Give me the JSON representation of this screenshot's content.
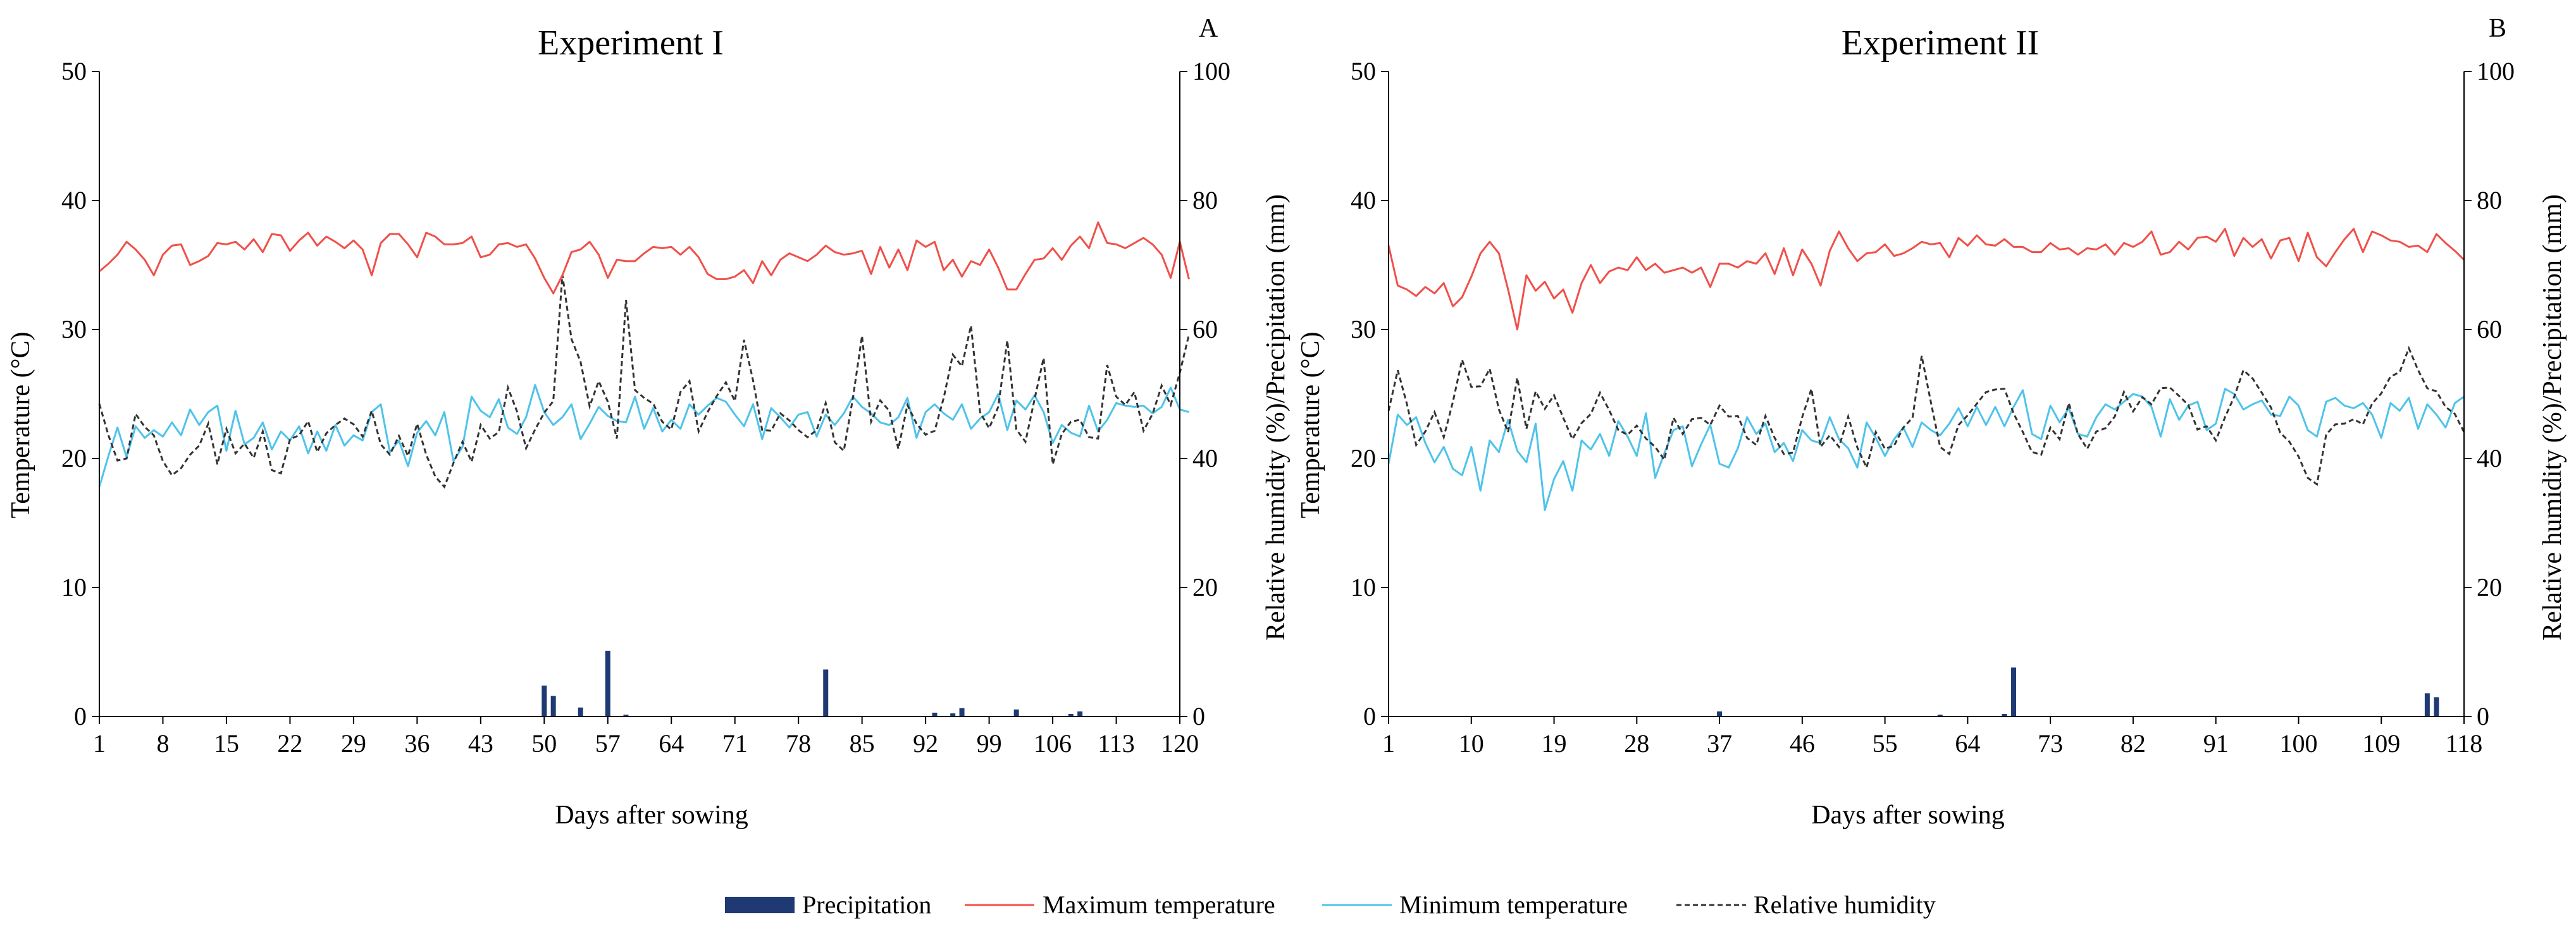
{
  "colors": {
    "precipitation": "#1f3a73",
    "max_temperature": "#f0504a",
    "min_temperature": "#4fc3ea",
    "relative_humidity": "#333333",
    "axis": "#000000"
  },
  "legend": {
    "precipitation": "Precipitation",
    "max_temperature": "Maximum temperature",
    "min_temperature": "Minimum temperature",
    "relative_humidity": "Relative humidity"
  },
  "chart_data": [
    {
      "type": "line",
      "panel_letter": "A",
      "title": "Experiment I",
      "xlabel": "Days after sowing",
      "ylabel": "Temperature (°C)",
      "ylabel_right": "Relative humidity (%)/Precipitation (mm)",
      "xlim": [
        1,
        120
      ],
      "xticks": [
        1,
        8,
        15,
        22,
        29,
        36,
        43,
        50,
        57,
        64,
        71,
        78,
        85,
        92,
        99,
        106,
        113,
        120
      ],
      "ylim": [
        0,
        50
      ],
      "yticks": [
        0,
        10,
        20,
        30,
        40,
        50
      ],
      "ylim_right": [
        0,
        100
      ],
      "yticks_right": [
        0,
        20,
        40,
        60,
        80,
        100
      ],
      "max_temperature": [
        34.5,
        35.1,
        35.8,
        36.8,
        36.2,
        35.4,
        34.2,
        35.8,
        36.5,
        36.6,
        35.0,
        35.3,
        35.7,
        36.7,
        36.6,
        36.8,
        36.2,
        37.0,
        36.0,
        37.4,
        37.3,
        36.1,
        36.9,
        37.5,
        36.5,
        37.2,
        36.8,
        36.3,
        36.9,
        36.2,
        34.2,
        36.7,
        37.4,
        37.4,
        36.6,
        35.6,
        37.5,
        37.2,
        36.6,
        36.6,
        36.7,
        37.2,
        35.6,
        35.8,
        36.6,
        36.7,
        36.4,
        36.6,
        35.5,
        34.0,
        32.8,
        34.2,
        36.0,
        36.2,
        36.8,
        35.8,
        34.0,
        35.4,
        35.3,
        35.3,
        35.9,
        36.4,
        36.3,
        36.4,
        35.8,
        36.4,
        35.6,
        34.3,
        33.9,
        33.9,
        34.1,
        34.6,
        33.6,
        35.3,
        34.2,
        35.4,
        35.9,
        35.6,
        35.3,
        35.8,
        36.5,
        36.0,
        35.8,
        35.9,
        36.1,
        34.3,
        36.4,
        34.8,
        36.2,
        34.6,
        36.9,
        36.4,
        36.8,
        34.6,
        35.4,
        34.1,
        35.3,
        35.0,
        36.2,
        34.8,
        33.1,
        33.1,
        34.3,
        35.4,
        35.5,
        36.3,
        35.4,
        36.5,
        37.2,
        36.3,
        38.3,
        36.7,
        36.6,
        36.3,
        36.7,
        37.1,
        36.6,
        35.8,
        34.0,
        36.8,
        33.9
      ],
      "min_temperature": [
        17.8,
        20.2,
        22.4,
        20.1,
        22.5,
        21.6,
        22.2,
        21.7,
        22.8,
        21.8,
        23.8,
        22.6,
        23.6,
        24.1,
        20.6,
        23.7,
        21.1,
        21.6,
        22.8,
        20.7,
        22.1,
        21.4,
        22.5,
        20.4,
        22.1,
        20.6,
        22.6,
        21.0,
        21.8,
        21.4,
        23.6,
        24.2,
        20.5,
        21.4,
        19.4,
        22.0,
        22.9,
        21.8,
        23.6,
        19.8,
        20.9,
        24.8,
        23.7,
        23.2,
        24.6,
        22.4,
        21.9,
        23.2,
        25.7,
        23.6,
        22.6,
        23.2,
        24.2,
        21.5,
        22.7,
        24.0,
        23.3,
        22.9,
        22.8,
        24.8,
        22.3,
        23.9,
        22.1,
        23.0,
        22.3,
        24.2,
        23.4,
        24.1,
        24.7,
        24.4,
        23.4,
        22.5,
        24.2,
        21.5,
        23.9,
        23.2,
        22.4,
        23.4,
        23.6,
        21.7,
        23.4,
        22.6,
        23.5,
        24.8,
        24.0,
        23.5,
        22.8,
        22.6,
        23.2,
        24.7,
        21.6,
        23.6,
        24.2,
        23.5,
        23.0,
        24.2,
        22.3,
        23.1,
        23.6,
        25.0,
        22.2,
        24.5,
        23.8,
        24.9,
        23.6,
        21.2,
        22.6,
        22.0,
        21.7,
        24.1,
        22.1,
        23.0,
        24.3,
        24.1,
        24.0,
        24.1,
        23.5,
        24.0,
        25.5,
        23.8,
        23.6
      ],
      "relative_humidity": [
        48.5,
        43.6,
        39.7,
        40.0,
        46.9,
        44.9,
        43.6,
        39.6,
        37.4,
        38.5,
        40.6,
        42.0,
        45.4,
        39.1,
        44.6,
        40.8,
        42.3,
        40.1,
        44.2,
        38.2,
        37.7,
        43.0,
        43.6,
        45.8,
        41.0,
        43.9,
        45.2,
        46.2,
        45.3,
        43.4,
        47.4,
        42.2,
        40.6,
        43.5,
        40.4,
        45.4,
        40.6,
        37.2,
        35.6,
        39.3,
        42.6,
        39.5,
        45.2,
        43.1,
        44.1,
        51.0,
        47.3,
        41.6,
        44.5,
        47.1,
        48.9,
        68.5,
        58.5,
        55.0,
        48.1,
        52.0,
        48.8,
        43.1,
        64.6,
        50.6,
        49.4,
        48.5,
        45.7,
        44.5,
        50.3,
        52.0,
        44.2,
        47.2,
        49.7,
        51.8,
        48.9,
        58.4,
        52.1,
        44.4,
        44.3,
        47.0,
        45.9,
        44.4,
        43.3,
        44.4,
        48.6,
        42.5,
        41.2,
        49.4,
        59.0,
        45.7,
        49.0,
        47.4,
        41.5,
        48.3,
        45.4,
        43.7,
        44.3,
        49.4,
        56.1,
        54.3,
        60.6,
        47.2,
        44.7,
        48.0,
        58.3,
        44.5,
        42.6,
        49.2,
        55.6,
        39.1,
        43.8,
        45.7,
        46.0,
        43.3,
        43.1,
        54.5,
        49.6,
        48.3,
        50.3,
        44.3,
        46.9,
        51.3,
        48.3,
        53.3,
        59.2
      ],
      "precipitation": [
        {
          "day": 50,
          "value": 4.8
        },
        {
          "day": 51,
          "value": 3.2
        },
        {
          "day": 54,
          "value": 1.4
        },
        {
          "day": 57,
          "value": 10.2
        },
        {
          "day": 59,
          "value": 0.3
        },
        {
          "day": 81,
          "value": 7.3
        },
        {
          "day": 93,
          "value": 0.6
        },
        {
          "day": 95,
          "value": 0.5
        },
        {
          "day": 96,
          "value": 1.3
        },
        {
          "day": 102,
          "value": 1.1
        },
        {
          "day": 108,
          "value": 0.4
        },
        {
          "day": 109,
          "value": 0.8
        }
      ]
    },
    {
      "type": "line",
      "panel_letter": "B",
      "title": "Experiment II",
      "xlabel": "Days after sowing",
      "ylabel": "Temperature (°C)",
      "ylabel_right": "Relative humidity (%)/Precipitation (mm)",
      "xlim": [
        1,
        118
      ],
      "xticks": [
        1,
        10,
        19,
        28,
        37,
        46,
        55,
        64,
        73,
        82,
        91,
        100,
        109,
        118
      ],
      "ylim": [
        0,
        50
      ],
      "yticks": [
        0,
        10,
        20,
        30,
        40,
        50
      ],
      "ylim_right": [
        0,
        100
      ],
      "yticks_right": [
        0,
        20,
        40,
        60,
        80,
        100
      ],
      "max_temperature": [
        36.5,
        33.4,
        33.1,
        32.6,
        33.3,
        32.8,
        33.6,
        31.8,
        32.5,
        34.1,
        35.9,
        36.8,
        35.9,
        33.1,
        30.0,
        34.2,
        33.0,
        33.7,
        32.4,
        33.1,
        31.3,
        33.6,
        35.0,
        33.6,
        34.5,
        34.8,
        34.6,
        35.6,
        34.6,
        35.1,
        34.4,
        34.6,
        34.8,
        34.4,
        34.8,
        33.3,
        35.1,
        35.1,
        34.8,
        35.3,
        35.1,
        35.9,
        34.3,
        36.3,
        34.2,
        36.2,
        35.1,
        33.4,
        36.1,
        37.6,
        36.3,
        35.3,
        35.9,
        36.0,
        36.6,
        35.7,
        35.9,
        36.3,
        36.8,
        36.6,
        36.7,
        35.6,
        37.1,
        36.5,
        37.3,
        36.6,
        36.5,
        37.0,
        36.4,
        36.4,
        36.0,
        36.0,
        36.7,
        36.2,
        36.3,
        35.8,
        36.3,
        36.2,
        36.6,
        35.8,
        36.7,
        36.4,
        36.8,
        37.6,
        35.8,
        36.0,
        36.8,
        36.2,
        37.1,
        37.2,
        36.8,
        37.8,
        35.7,
        37.1,
        36.4,
        37.0,
        35.5,
        36.9,
        37.1,
        35.3,
        37.5,
        35.6,
        34.9,
        36.0,
        37.0,
        37.8,
        36.0,
        37.6,
        37.3,
        36.9,
        36.8,
        36.4,
        36.5,
        36.0,
        37.4,
        36.7,
        36.1,
        35.4
      ],
      "min_temperature": [
        19.6,
        23.4,
        22.6,
        23.2,
        21.2,
        19.7,
        20.9,
        19.2,
        18.7,
        20.9,
        17.5,
        21.4,
        20.5,
        23.0,
        20.6,
        19.7,
        22.7,
        16.0,
        18.4,
        19.8,
        17.5,
        21.4,
        20.7,
        21.9,
        20.2,
        22.9,
        21.7,
        20.2,
        23.5,
        18.5,
        20.4,
        22.2,
        22.5,
        19.4,
        21.1,
        22.6,
        19.6,
        19.3,
        20.8,
        23.2,
        21.9,
        22.7,
        20.5,
        21.2,
        19.8,
        22.2,
        21.4,
        21.2,
        23.2,
        21.5,
        20.8,
        19.3,
        22.8,
        21.6,
        20.2,
        21.5,
        22.4,
        20.9,
        22.8,
        22.2,
        21.8,
        22.7,
        23.9,
        22.5,
        24.0,
        22.6,
        24.0,
        22.5,
        24.0,
        25.3,
        21.9,
        21.5,
        24.1,
        22.8,
        23.9,
        21.9,
        21.7,
        23.2,
        24.2,
        23.8,
        24.4,
        25.0,
        24.8,
        24.0,
        21.7,
        24.6,
        23.0,
        24.1,
        24.4,
        22.2,
        22.7,
        25.4,
        25.0,
        23.8,
        24.2,
        24.5,
        23.4,
        23.3,
        24.8,
        24.1,
        22.2,
        21.7,
        24.4,
        24.7,
        24.1,
        23.9,
        24.3,
        23.4,
        21.6,
        24.3,
        23.7,
        24.7,
        22.3,
        24.2,
        23.4,
        22.4,
        24.3,
        24.8
      ],
      "relative_humidity": [
        47.4,
        53.7,
        48.4,
        42.1,
        44.2,
        47.2,
        43.3,
        48.8,
        55.3,
        51.1,
        51.2,
        53.9,
        47.6,
        44.1,
        52.5,
        44.6,
        50.4,
        47.7,
        49.8,
        46.3,
        43.0,
        45.5,
        46.9,
        50.2,
        47.5,
        44.4,
        43.7,
        45.1,
        43.1,
        41.8,
        39.8,
        46.3,
        43.8,
        46.1,
        46.3,
        45.2,
        48.2,
        46.5,
        46.6,
        43.2,
        42.1,
        46.6,
        43.2,
        40.7,
        40.9,
        46.4,
        50.8,
        41.8,
        43.6,
        41.8,
        46.5,
        41.7,
        38.6,
        44.1,
        41.5,
        42.0,
        44.8,
        46.3,
        55.9,
        48.7,
        41.8,
        40.7,
        45.2,
        46.7,
        48.5,
        50.3,
        50.7,
        50.8,
        47.0,
        44.1,
        41.0,
        40.6,
        44.8,
        43.0,
        48.6,
        43.8,
        41.5,
        44.2,
        44.7,
        46.5,
        50.3,
        47.3,
        49.5,
        48.4,
        50.9,
        51.0,
        49.7,
        48.3,
        44.5,
        45.0,
        42.8,
        46.4,
        49.6,
        53.7,
        52.4,
        50.2,
        47.9,
        44.0,
        42.6,
        40.3,
        37.0,
        36.0,
        43.7,
        45.3,
        45.4,
        46.1,
        45.3,
        48.5,
        50.1,
        52.7,
        53.4,
        57.1,
        53.7,
        50.9,
        50.4,
        48.0,
        46.9,
        44.1
      ],
      "precipitation": [
        {
          "day": 37,
          "value": 0.8
        },
        {
          "day": 61,
          "value": 0.3
        },
        {
          "day": 68,
          "value": 0.4
        },
        {
          "day": 69,
          "value": 7.6
        },
        {
          "day": 114,
          "value": 3.6
        },
        {
          "day": 115,
          "value": 3.0
        }
      ]
    }
  ]
}
